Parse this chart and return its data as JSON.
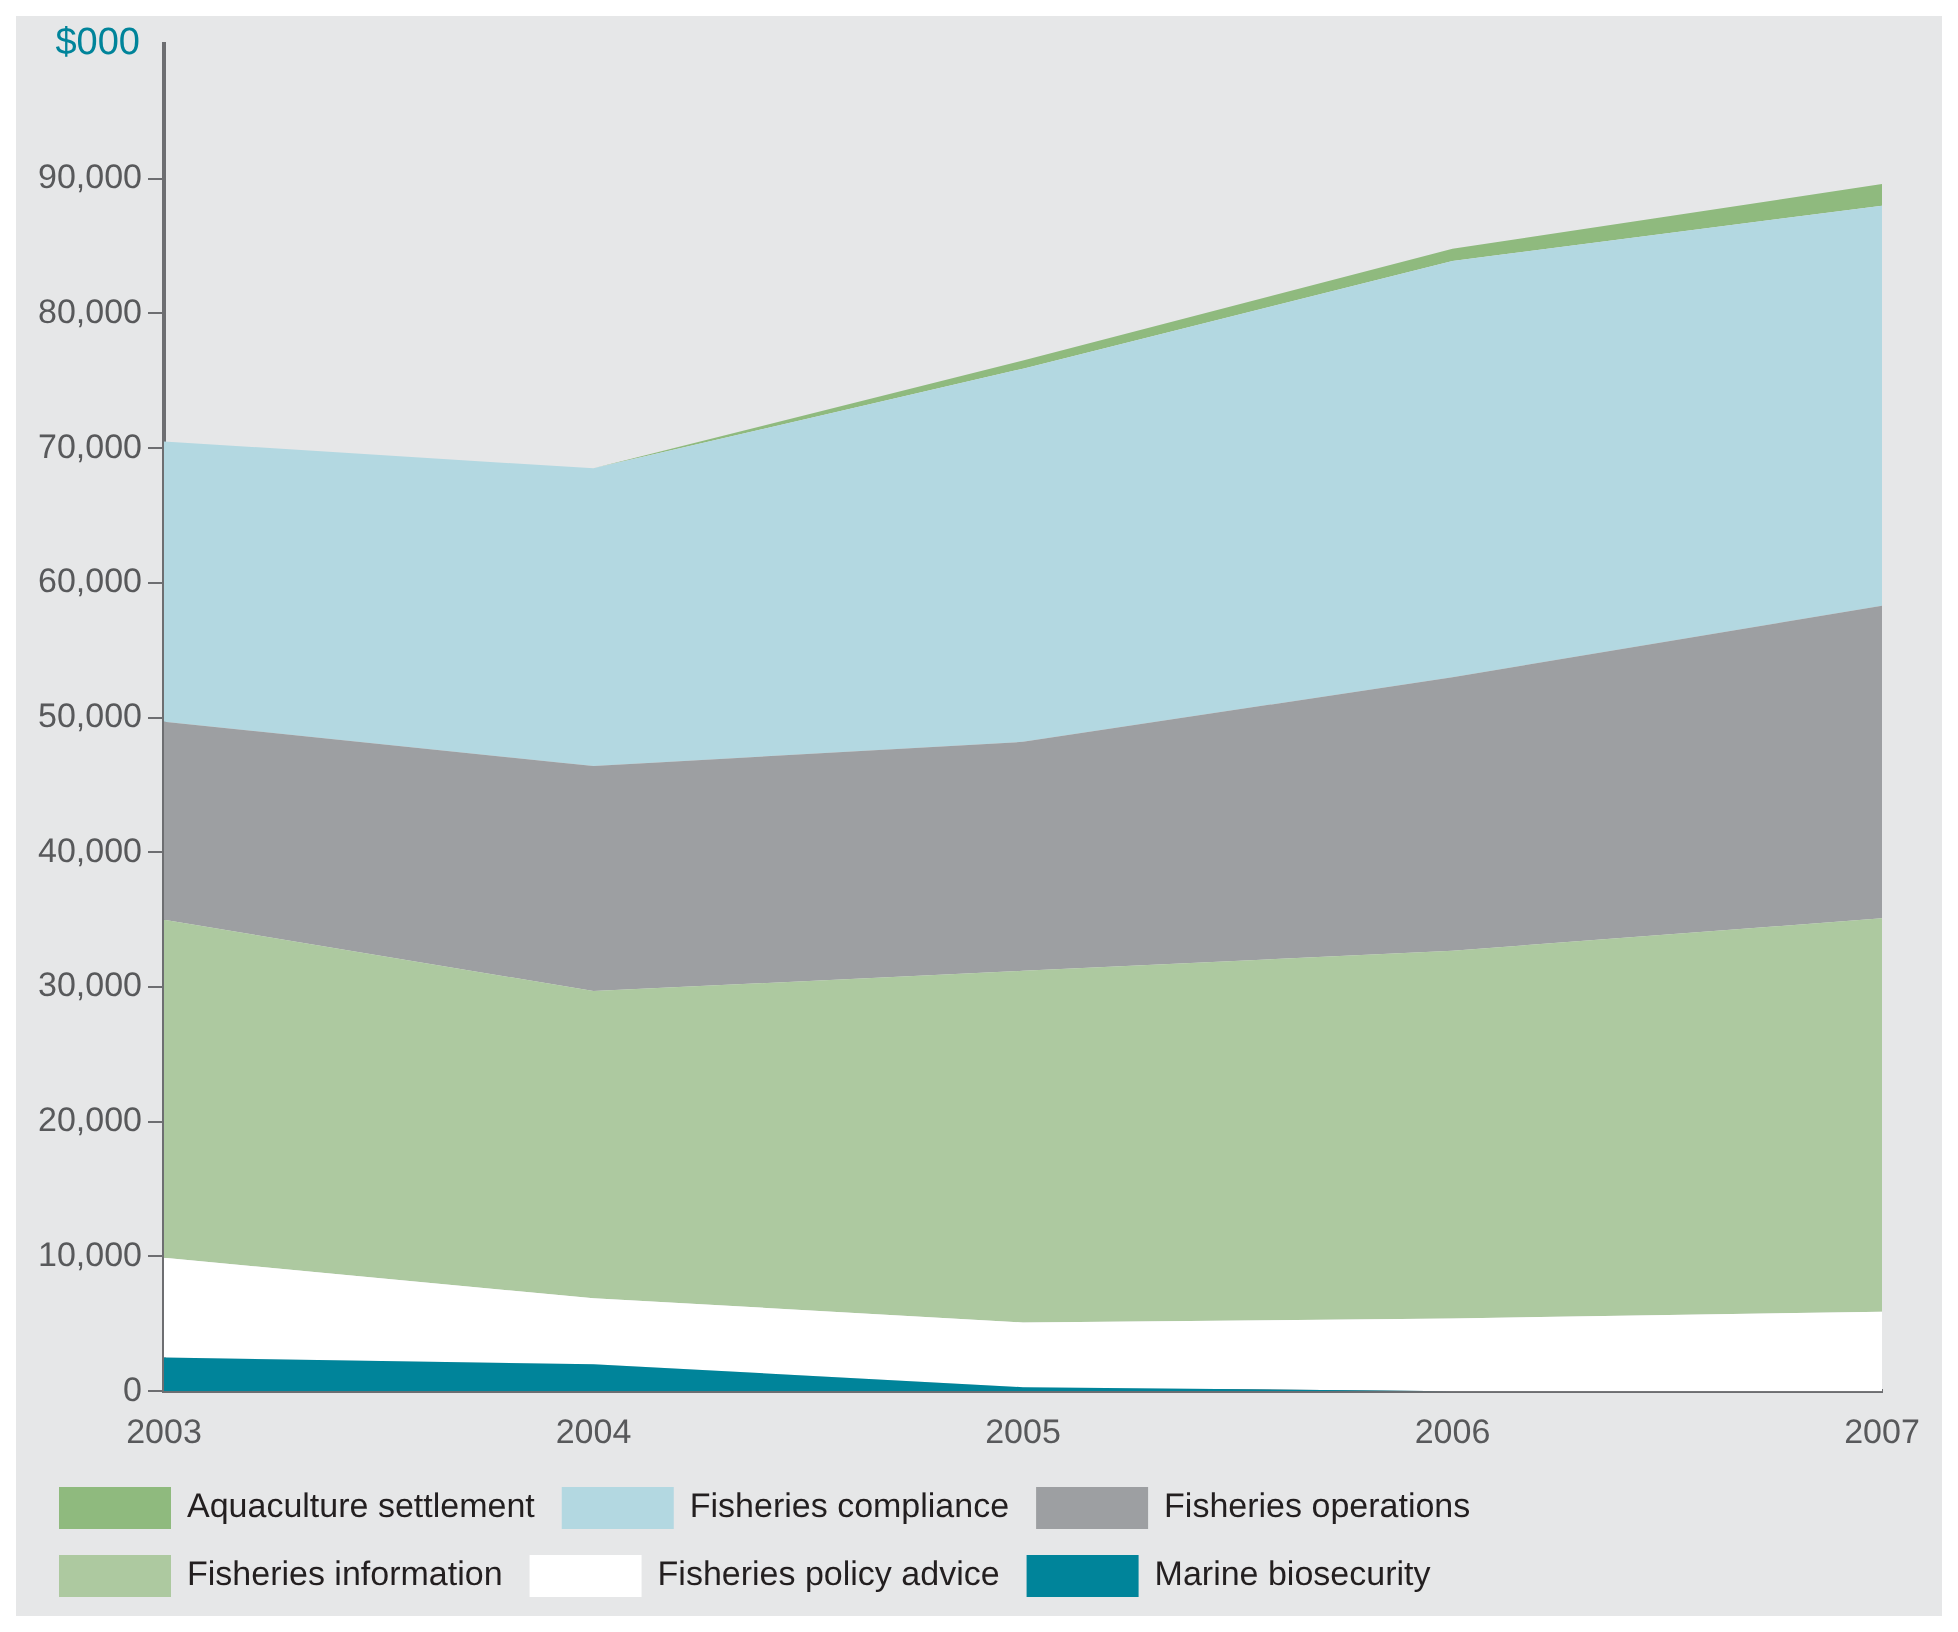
{
  "chart_data": {
    "type": "area",
    "ylabel": "$000",
    "categories": [
      "2003",
      "2004",
      "2005",
      "2006",
      "2007"
    ],
    "stacked": true,
    "ylim": [
      0,
      100000
    ],
    "yticks": [
      0,
      {
        "value": 10000,
        "label": "10,000"
      },
      {
        "value": 20000,
        "label": "20,000"
      },
      {
        "value": 30000,
        "label": "30,000"
      },
      {
        "value": 40000,
        "label": "40,000"
      },
      {
        "value": 50000,
        "label": "50,000"
      },
      {
        "value": 60000,
        "label": "60,000"
      },
      {
        "value": 70000,
        "label": "70,000"
      },
      {
        "value": 80000,
        "label": "80,000"
      },
      {
        "value": 90000,
        "label": "90,000"
      }
    ],
    "grid": false,
    "legend": "bottom",
    "series": [
      {
        "name": "Marine biosecurity",
        "color": "#00849a",
        "values": [
          2500,
          2000,
          300,
          0,
          0
        ]
      },
      {
        "name": "Fisheries policy advice",
        "color": "#ffffff",
        "values": [
          7400,
          4900,
          4800,
          5400,
          5900
        ]
      },
      {
        "name": "Fisheries information",
        "color": "#adc9a0",
        "values": [
          25100,
          22800,
          26100,
          27300,
          29200
        ]
      },
      {
        "name": "Fisheries operations",
        "color": "#9d9fa2",
        "values": [
          14700,
          16700,
          17000,
          20300,
          23200
        ]
      },
      {
        "name": "Fisheries compliance",
        "color": "#b3d8e1",
        "values": [
          20800,
          22100,
          27700,
          30900,
          29700
        ]
      },
      {
        "name": "Aquaculture settlement",
        "color": "#8fba7e",
        "values": [
          0,
          0,
          600,
          900,
          1600
        ]
      }
    ]
  }
}
